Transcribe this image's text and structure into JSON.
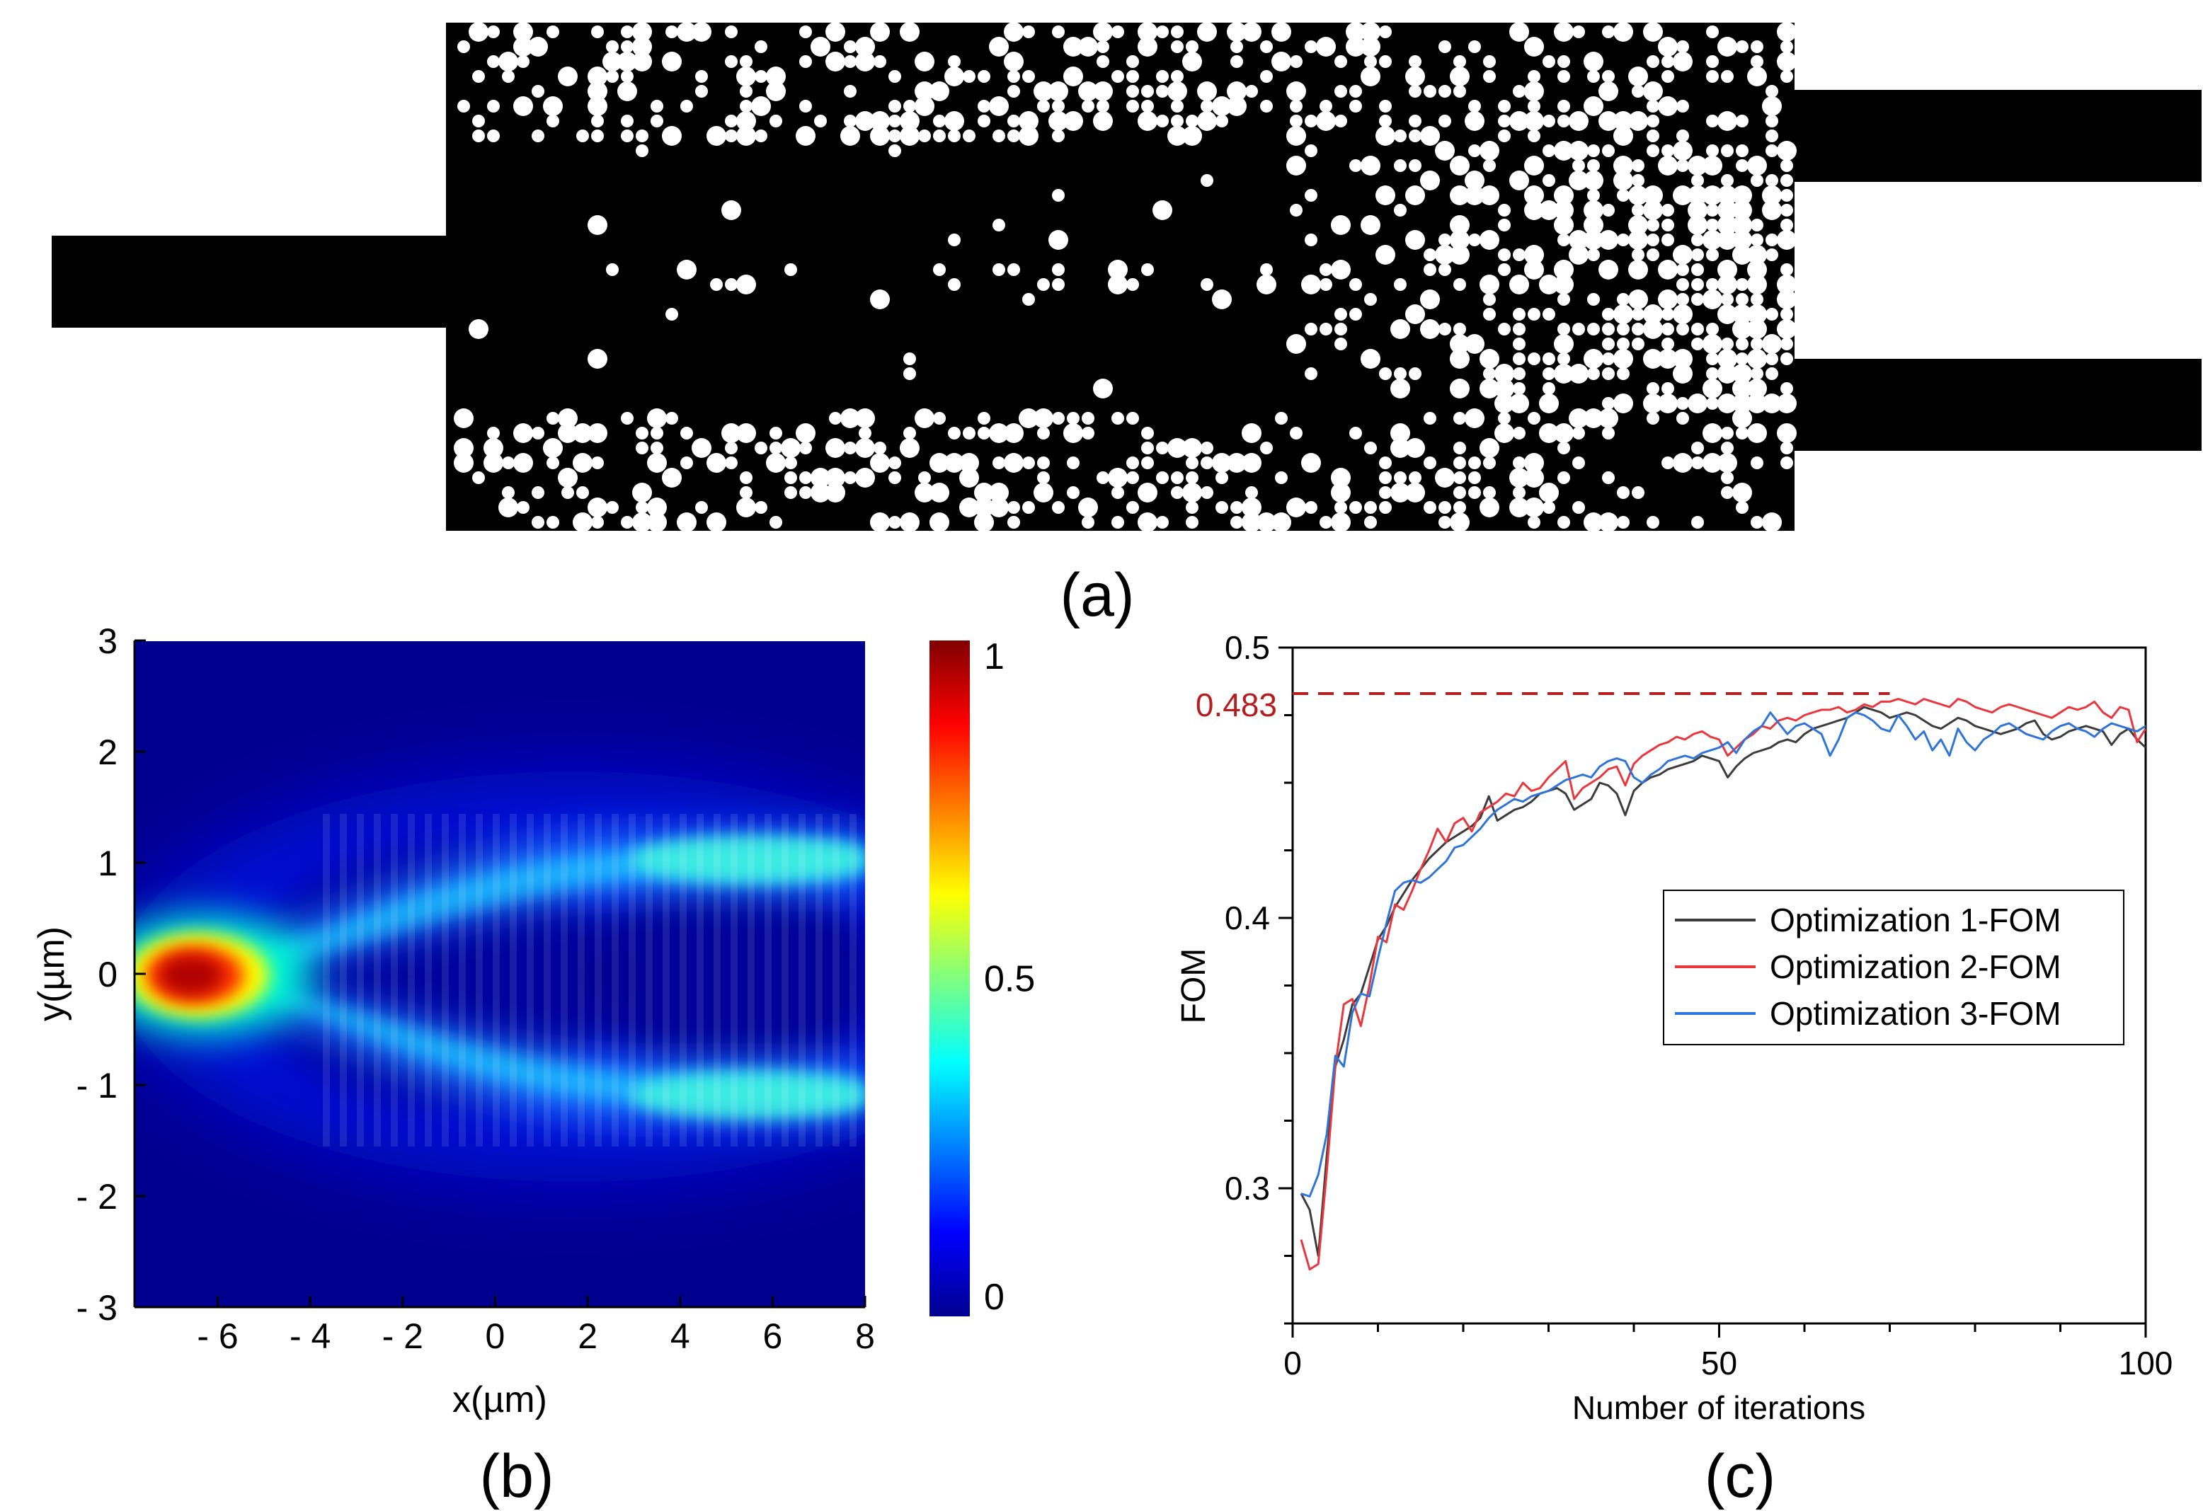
{
  "panels": {
    "a": {
      "label": "(a)"
    },
    "b": {
      "label": "(b)"
    },
    "c": {
      "label": "(c)"
    }
  },
  "chart_data": [
    {
      "type": "heatmap",
      "panel": "b",
      "title": "",
      "xlabel": "x(µm)",
      "ylabel": "y(µm)",
      "xlim": [
        -7.8,
        8
      ],
      "ylim": [
        -3,
        3
      ],
      "xticks": [
        -6,
        -4,
        -2,
        0,
        2,
        4,
        6,
        8
      ],
      "xtick_labels": [
        "- 6",
        "- 4",
        "- 2",
        "0",
        "2",
        "4",
        "6",
        "8"
      ],
      "yticks": [
        3,
        2,
        1,
        0,
        -1,
        -2,
        -3
      ],
      "ytick_labels": [
        "3",
        "2",
        "1",
        "0",
        "- 1",
        "- 2",
        "- 3"
      ],
      "colorbar": {
        "range": [
          0,
          1
        ],
        "ticks": [
          1,
          0.5,
          0
        ],
        "tick_labels": [
          "1",
          "0.5",
          "0"
        ],
        "colormap": "jet"
      },
      "description_values": {
        "input_peak_x": -6.5,
        "input_peak_y": 0,
        "input_peak_value": 1.0,
        "output_branch_y": [
          1.2,
          -1.2
        ],
        "output_branch_value": 0.35
      }
    },
    {
      "type": "line",
      "panel": "c",
      "title": "",
      "xlabel": "Number of iterations",
      "ylabel": "FOM",
      "xlim": [
        0,
        100
      ],
      "ylim": [
        0.25,
        0.5
      ],
      "xticks": [
        0,
        50,
        100
      ],
      "xtick_labels": [
        "0",
        "50",
        "100"
      ],
      "yticks": [
        0.5,
        0.4,
        0.3
      ],
      "ytick_labels": [
        "0.5",
        "0.4",
        "0.3"
      ],
      "annotation": {
        "label": "0.483",
        "y": 0.483,
        "x_end": 70,
        "color": "#b41e1e"
      },
      "legend": "right-middle",
      "series": [
        {
          "name": "Optimization 1-FOM",
          "color": "#3c3c3c",
          "x": [
            1,
            2,
            3,
            4,
            5,
            6,
            7,
            8,
            9,
            10,
            11,
            12,
            13,
            14,
            15,
            16,
            17,
            18,
            19,
            20,
            21,
            22,
            23,
            24,
            25,
            26,
            27,
            28,
            29,
            30,
            31,
            32,
            33,
            34,
            35,
            36,
            37,
            38,
            39,
            40,
            41,
            42,
            43,
            44,
            45,
            46,
            47,
            48,
            49,
            50,
            51,
            52,
            53,
            54,
            55,
            56,
            57,
            58,
            59,
            60,
            61,
            62,
            63,
            64,
            65,
            66,
            67,
            68,
            69,
            70,
            71,
            72,
            73,
            74,
            75,
            76,
            77,
            78,
            79,
            80,
            81,
            82,
            83,
            84,
            85,
            86,
            87,
            88,
            89,
            90,
            91,
            92,
            93,
            94,
            95,
            96,
            97,
            98,
            99,
            100
          ],
          "values": [
            0.298,
            0.292,
            0.275,
            0.312,
            0.345,
            0.355,
            0.368,
            0.372,
            0.382,
            0.392,
            0.397,
            0.404,
            0.409,
            0.414,
            0.418,
            0.422,
            0.425,
            0.428,
            0.43,
            0.432,
            0.434,
            0.437,
            0.445,
            0.436,
            0.438,
            0.44,
            0.441,
            0.443,
            0.446,
            0.447,
            0.448,
            0.446,
            0.44,
            0.442,
            0.444,
            0.45,
            0.449,
            0.446,
            0.438,
            0.447,
            0.45,
            0.452,
            0.453,
            0.455,
            0.456,
            0.457,
            0.458,
            0.46,
            0.459,
            0.458,
            0.452,
            0.456,
            0.459,
            0.461,
            0.462,
            0.463,
            0.465,
            0.466,
            0.465,
            0.468,
            0.47,
            0.471,
            0.472,
            0.473,
            0.474,
            0.476,
            0.478,
            0.477,
            0.476,
            0.474,
            0.475,
            0.476,
            0.475,
            0.473,
            0.471,
            0.47,
            0.472,
            0.474,
            0.473,
            0.471,
            0.47,
            0.469,
            0.468,
            0.469,
            0.47,
            0.472,
            0.473,
            0.468,
            0.466,
            0.467,
            0.469,
            0.47,
            0.471,
            0.47,
            0.469,
            0.464,
            0.468,
            0.47,
            0.466,
            0.463
          ]
        },
        {
          "name": "Optimization 2-FOM",
          "color": "#e8383d",
          "x": [
            1,
            2,
            3,
            4,
            5,
            6,
            7,
            8,
            9,
            10,
            11,
            12,
            13,
            14,
            15,
            16,
            17,
            18,
            19,
            20,
            21,
            22,
            23,
            24,
            25,
            26,
            27,
            28,
            29,
            30,
            31,
            32,
            33,
            34,
            35,
            36,
            37,
            38,
            39,
            40,
            41,
            42,
            43,
            44,
            45,
            46,
            47,
            48,
            49,
            50,
            51,
            52,
            53,
            54,
            55,
            56,
            57,
            58,
            59,
            60,
            61,
            62,
            63,
            64,
            65,
            66,
            67,
            68,
            69,
            70,
            71,
            72,
            73,
            74,
            75,
            76,
            77,
            78,
            79,
            80,
            81,
            82,
            83,
            84,
            85,
            86,
            87,
            88,
            89,
            90,
            91,
            92,
            93,
            94,
            95,
            96,
            97,
            98,
            99,
            100
          ],
          "values": [
            0.281,
            0.27,
            0.272,
            0.306,
            0.345,
            0.368,
            0.37,
            0.36,
            0.375,
            0.393,
            0.391,
            0.405,
            0.403,
            0.41,
            0.418,
            0.425,
            0.433,
            0.428,
            0.435,
            0.437,
            0.432,
            0.439,
            0.441,
            0.443,
            0.446,
            0.445,
            0.45,
            0.447,
            0.448,
            0.452,
            0.455,
            0.458,
            0.444,
            0.448,
            0.45,
            0.452,
            0.455,
            0.456,
            0.449,
            0.457,
            0.46,
            0.462,
            0.464,
            0.465,
            0.467,
            0.466,
            0.468,
            0.469,
            0.467,
            0.466,
            0.46,
            0.463,
            0.466,
            0.468,
            0.471,
            0.47,
            0.473,
            0.474,
            0.473,
            0.475,
            0.476,
            0.477,
            0.477,
            0.478,
            0.476,
            0.477,
            0.479,
            0.478,
            0.48,
            0.48,
            0.481,
            0.48,
            0.479,
            0.481,
            0.48,
            0.479,
            0.478,
            0.481,
            0.48,
            0.478,
            0.477,
            0.476,
            0.478,
            0.479,
            0.478,
            0.477,
            0.476,
            0.475,
            0.474,
            0.476,
            0.478,
            0.477,
            0.478,
            0.48,
            0.476,
            0.474,
            0.478,
            0.477,
            0.465,
            0.47
          ]
        },
        {
          "name": "Optimization 3-FOM",
          "color": "#2f74d8",
          "x": [
            1,
            2,
            3,
            4,
            5,
            6,
            7,
            8,
            9,
            10,
            11,
            12,
            13,
            14,
            15,
            16,
            17,
            18,
            19,
            20,
            21,
            22,
            23,
            24,
            25,
            26,
            27,
            28,
            29,
            30,
            31,
            32,
            33,
            34,
            35,
            36,
            37,
            38,
            39,
            40,
            41,
            42,
            43,
            44,
            45,
            46,
            47,
            48,
            49,
            50,
            51,
            52,
            53,
            54,
            55,
            56,
            57,
            58,
            59,
            60,
            61,
            62,
            63,
            64,
            65,
            66,
            67,
            68,
            69,
            70,
            71,
            72,
            73,
            74,
            75,
            76,
            77,
            78,
            79,
            80,
            81,
            82,
            83,
            84,
            85,
            86,
            87,
            88,
            89,
            90,
            91,
            92,
            93,
            94,
            95,
            96,
            97,
            98,
            99,
            100
          ],
          "values": [
            0.298,
            0.297,
            0.305,
            0.32,
            0.349,
            0.345,
            0.365,
            0.372,
            0.371,
            0.385,
            0.398,
            0.41,
            0.413,
            0.414,
            0.413,
            0.415,
            0.418,
            0.421,
            0.426,
            0.427,
            0.43,
            0.433,
            0.437,
            0.44,
            0.442,
            0.444,
            0.443,
            0.445,
            0.446,
            0.447,
            0.449,
            0.451,
            0.452,
            0.453,
            0.452,
            0.456,
            0.458,
            0.459,
            0.458,
            0.452,
            0.45,
            0.453,
            0.455,
            0.458,
            0.459,
            0.46,
            0.459,
            0.461,
            0.462,
            0.463,
            0.465,
            0.461,
            0.466,
            0.469,
            0.471,
            0.476,
            0.472,
            0.468,
            0.471,
            0.472,
            0.47,
            0.468,
            0.46,
            0.466,
            0.474,
            0.476,
            0.475,
            0.473,
            0.47,
            0.469,
            0.475,
            0.471,
            0.466,
            0.469,
            0.462,
            0.466,
            0.46,
            0.47,
            0.465,
            0.462,
            0.466,
            0.468,
            0.471,
            0.472,
            0.47,
            0.468,
            0.467,
            0.466,
            0.469,
            0.471,
            0.472,
            0.47,
            0.469,
            0.467,
            0.47,
            0.472,
            0.471,
            0.47,
            0.469,
            0.471
          ]
        }
      ]
    }
  ]
}
